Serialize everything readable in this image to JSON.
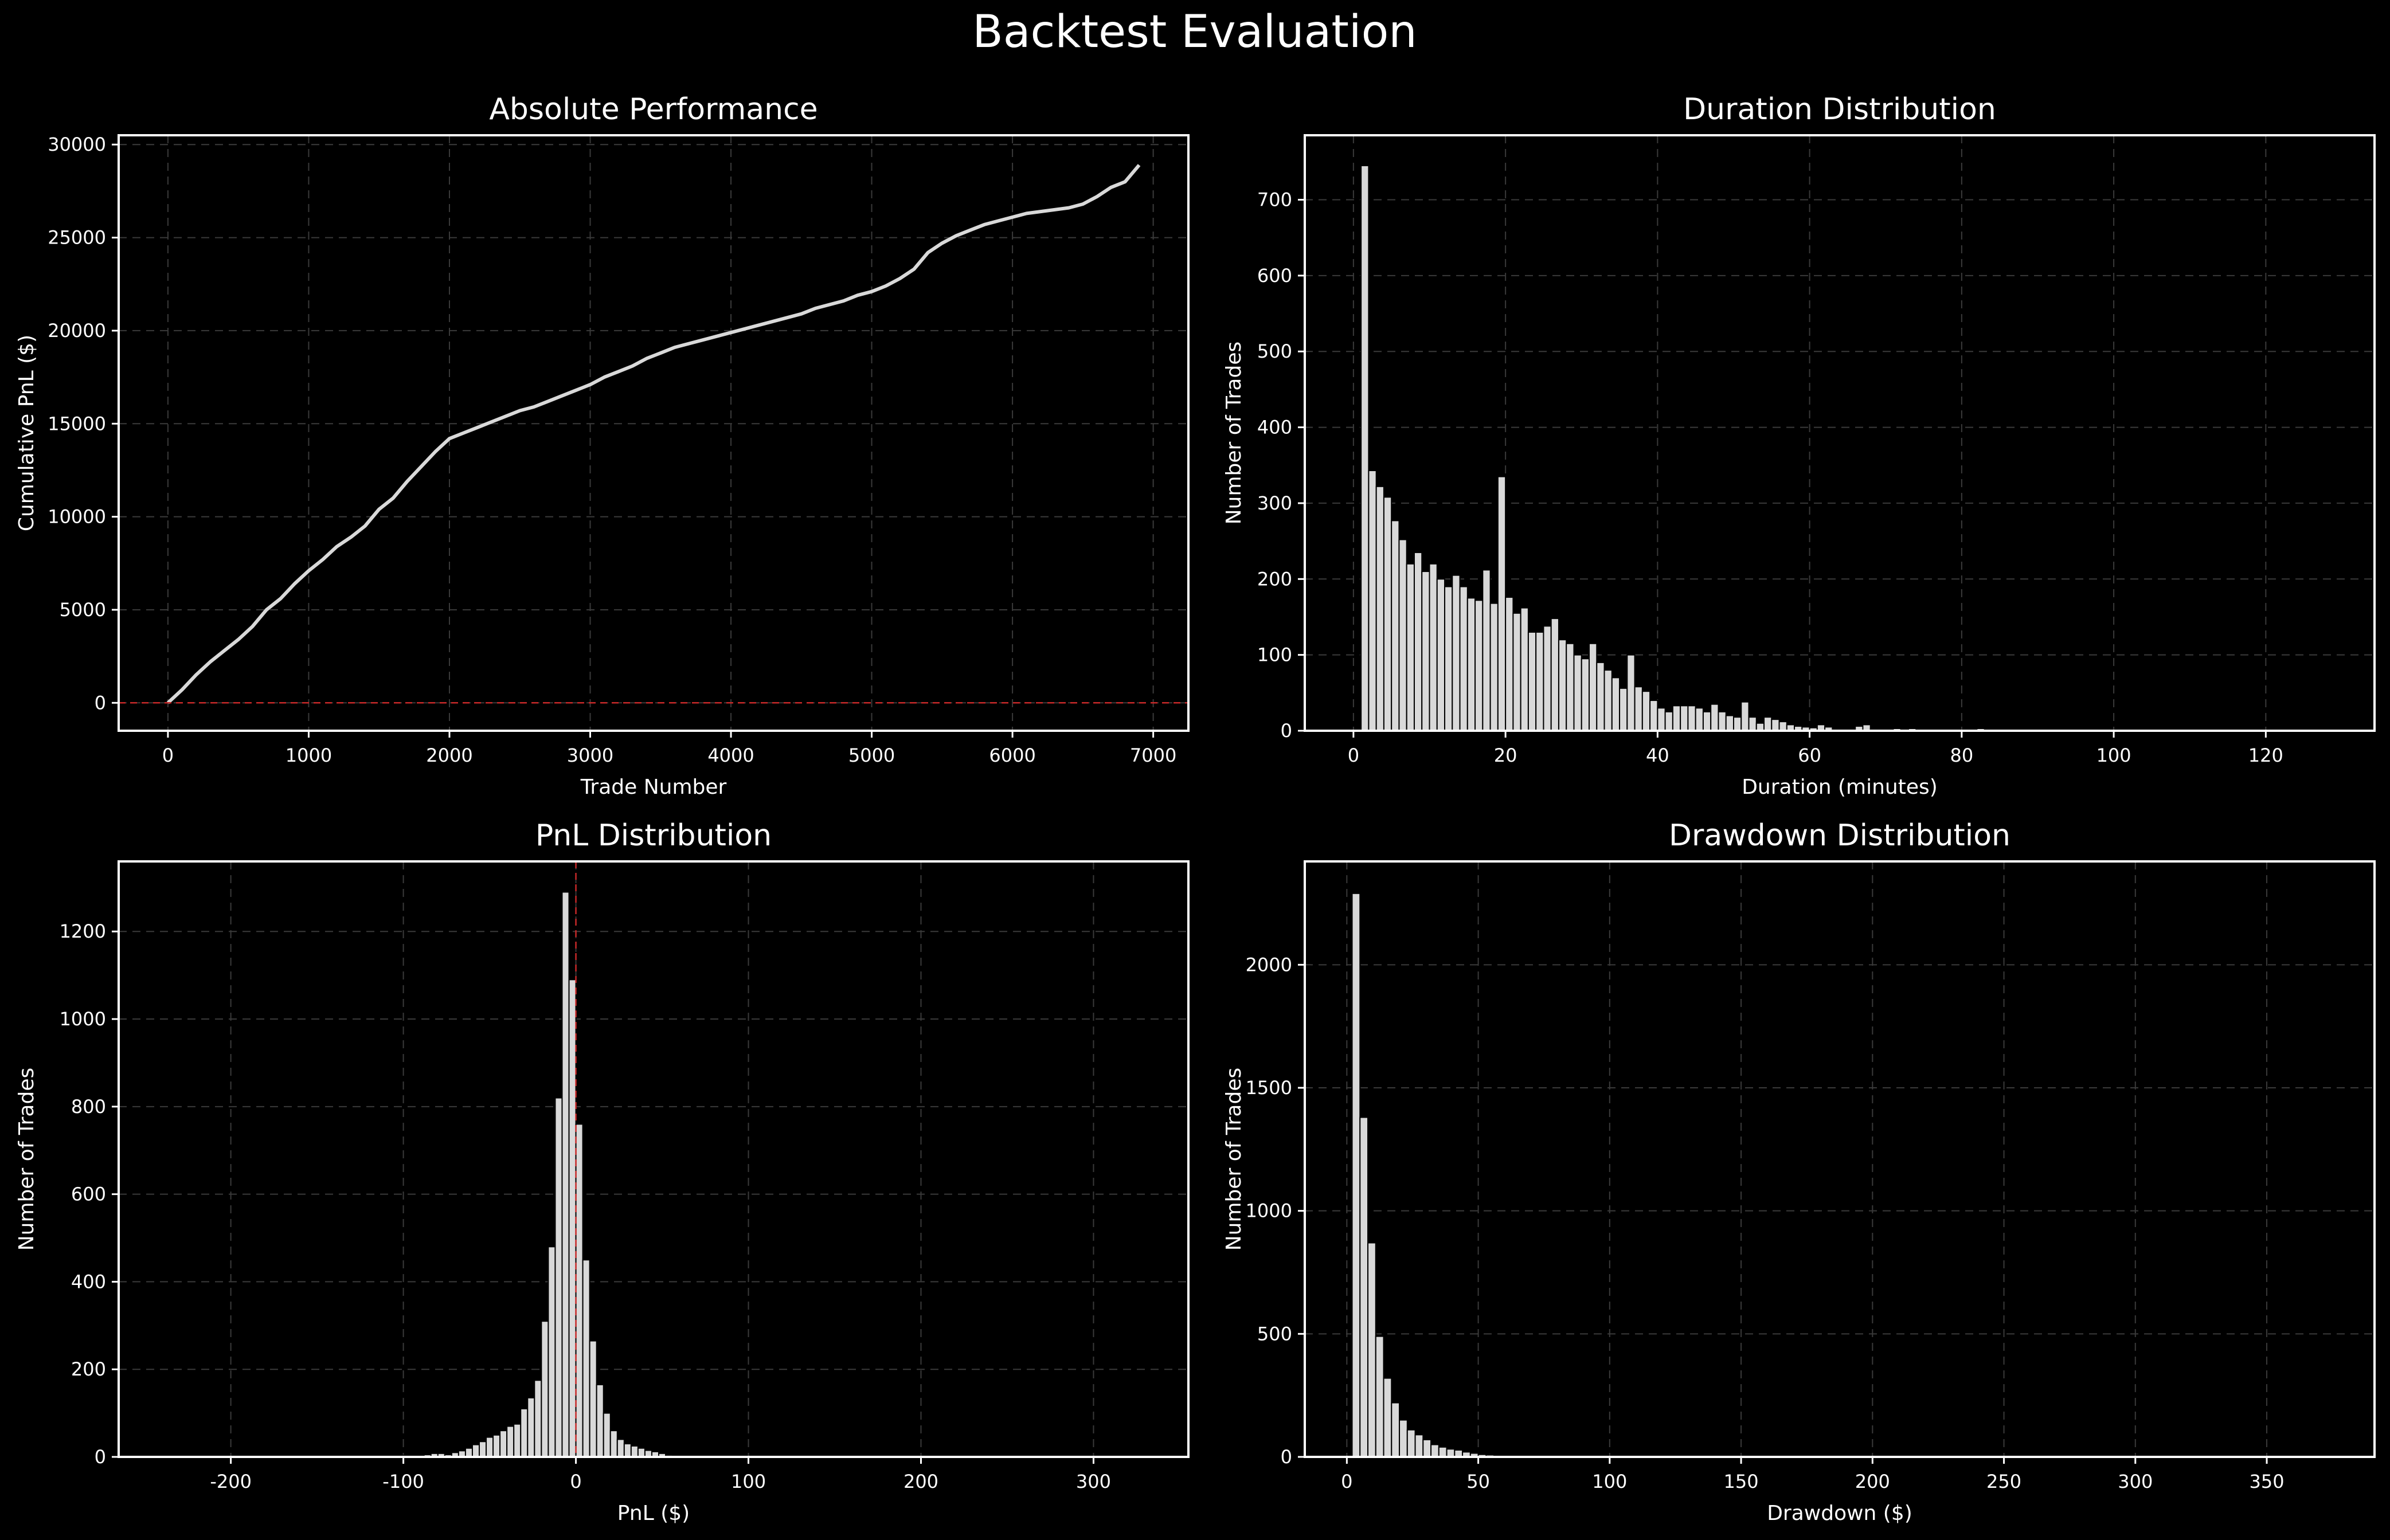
{
  "figure": {
    "title": "Backtest Evaluation",
    "background": "#000000",
    "foreground": "#ffffff",
    "grid_color": "#3a3a3a",
    "bar_fill": "#d9d9d9",
    "line_color": "#d9d9d9",
    "reference_line_color": "#c62828"
  },
  "chart_data": [
    {
      "id": "absolute-performance",
      "type": "line",
      "title": "Absolute Performance",
      "xlabel": "Trade Number",
      "ylabel": "Cumulative PnL ($)",
      "xlim": [
        -350,
        7250
      ],
      "ylim": [
        -1500,
        30500
      ],
      "xticks": [
        0,
        1000,
        2000,
        3000,
        4000,
        5000,
        6000,
        7000
      ],
      "yticks": [
        0,
        5000,
        10000,
        15000,
        20000,
        25000,
        30000
      ],
      "grid": true,
      "hline": 0,
      "series": [
        {
          "x": [
            0,
            100,
            200,
            300,
            400,
            500,
            600,
            700,
            800,
            900,
            1000,
            1100,
            1200,
            1300,
            1400,
            1500,
            1600,
            1700,
            1800,
            1900,
            2000,
            2100,
            2200,
            2300,
            2400,
            2500,
            2600,
            2700,
            2800,
            2900,
            3000,
            3100,
            3200,
            3300,
            3400,
            3500,
            3600,
            3700,
            3800,
            3900,
            4000,
            4100,
            4200,
            4300,
            4400,
            4500,
            4600,
            4700,
            4800,
            4900,
            5000,
            5100,
            5200,
            5300,
            5400,
            5500,
            5600,
            5700,
            5800,
            5900,
            6000,
            6100,
            6200,
            6300,
            6400,
            6500,
            6600,
            6700,
            6800,
            6900
          ],
          "y": [
            0,
            700,
            1500,
            2200,
            2800,
            3400,
            4100,
            5000,
            5600,
            6400,
            7100,
            7700,
            8400,
            8900,
            9500,
            10400,
            11000,
            11900,
            12700,
            13500,
            14200,
            14500,
            14800,
            15100,
            15400,
            15700,
            15900,
            16200,
            16500,
            16800,
            17100,
            17500,
            17800,
            18100,
            18500,
            18800,
            19100,
            19300,
            19500,
            19700,
            19900,
            20100,
            20300,
            20500,
            20700,
            20900,
            21200,
            21400,
            21600,
            21900,
            22100,
            22400,
            22800,
            23300,
            24200,
            24700,
            25100,
            25400,
            25700,
            25900,
            26100,
            26300,
            26400,
            26500,
            26600,
            26800,
            27200,
            27700,
            28000,
            28900
          ]
        }
      ]
    },
    {
      "id": "duration-distribution",
      "type": "bar",
      "title": "Duration Distribution",
      "xlabel": "Duration (minutes)",
      "ylabel": "Number of Trades",
      "xlim": [
        -6.4,
        134.3
      ],
      "ylim": [
        0,
        785
      ],
      "xticks": [
        0,
        20,
        40,
        60,
        80,
        100,
        120
      ],
      "yticks": [
        0,
        100,
        200,
        300,
        400,
        500,
        600,
        700
      ],
      "grid": true,
      "bin_start": 1,
      "bin_width": 1,
      "values": [
        745,
        343,
        322,
        308,
        277,
        252,
        220,
        235,
        210,
        220,
        200,
        190,
        205,
        190,
        175,
        172,
        212,
        168,
        335,
        176,
        155,
        162,
        130,
        130,
        138,
        148,
        120,
        115,
        100,
        95,
        115,
        90,
        80,
        70,
        56,
        100,
        58,
        52,
        40,
        30,
        25,
        33,
        33,
        33,
        30,
        25,
        35,
        25,
        20,
        18,
        38,
        18,
        10,
        18,
        15,
        12,
        8,
        6,
        5,
        4,
        8,
        5,
        2,
        2,
        0,
        6,
        8,
        2,
        2,
        2,
        3,
        2,
        3,
        0,
        2,
        0,
        0,
        0,
        0,
        0,
        2,
        3,
        0,
        0,
        0,
        1
      ]
    },
    {
      "id": "pnl-distribution",
      "type": "bar",
      "title": "PnL Distribution",
      "xlabel": "PnL ($)",
      "ylabel": "Number of Trades",
      "xlim": [
        -265,
        355
      ],
      "ylim": [
        0,
        1360
      ],
      "xticks": [
        -200,
        -100,
        0,
        100,
        200,
        300
      ],
      "yticks": [
        0,
        200,
        400,
        600,
        800,
        1000,
        1200
      ],
      "grid": true,
      "vline": 0,
      "bin_start": -100,
      "bin_width": 4,
      "values": [
        3,
        3,
        3,
        5,
        8,
        8,
        5,
        10,
        14,
        20,
        28,
        35,
        45,
        50,
        60,
        70,
        75,
        110,
        135,
        175,
        310,
        480,
        820,
        1290,
        1090,
        760,
        450,
        265,
        165,
        100,
        60,
        40,
        30,
        25,
        20,
        15,
        12,
        8,
        4,
        2
      ]
    },
    {
      "id": "drawdown-distribution",
      "type": "bar",
      "title": "Drawdown Distribution",
      "xlabel": "Drawdown ($)",
      "ylabel": "Number of Trades",
      "xlim": [
        -16,
        391
      ],
      "ylim": [
        0,
        2420
      ],
      "xticks": [
        0,
        50,
        100,
        150,
        200,
        250,
        300,
        350
      ],
      "yticks": [
        0,
        500,
        1000,
        1500,
        2000
      ],
      "grid": true,
      "bin_start": 2,
      "bin_width": 3,
      "values": [
        2290,
        1380,
        870,
        490,
        320,
        220,
        150,
        110,
        90,
        70,
        50,
        40,
        32,
        28,
        20,
        15,
        10,
        8,
        5,
        4,
        3,
        2,
        1,
        1,
        0,
        0,
        0,
        0,
        0,
        0,
        3
      ]
    }
  ]
}
